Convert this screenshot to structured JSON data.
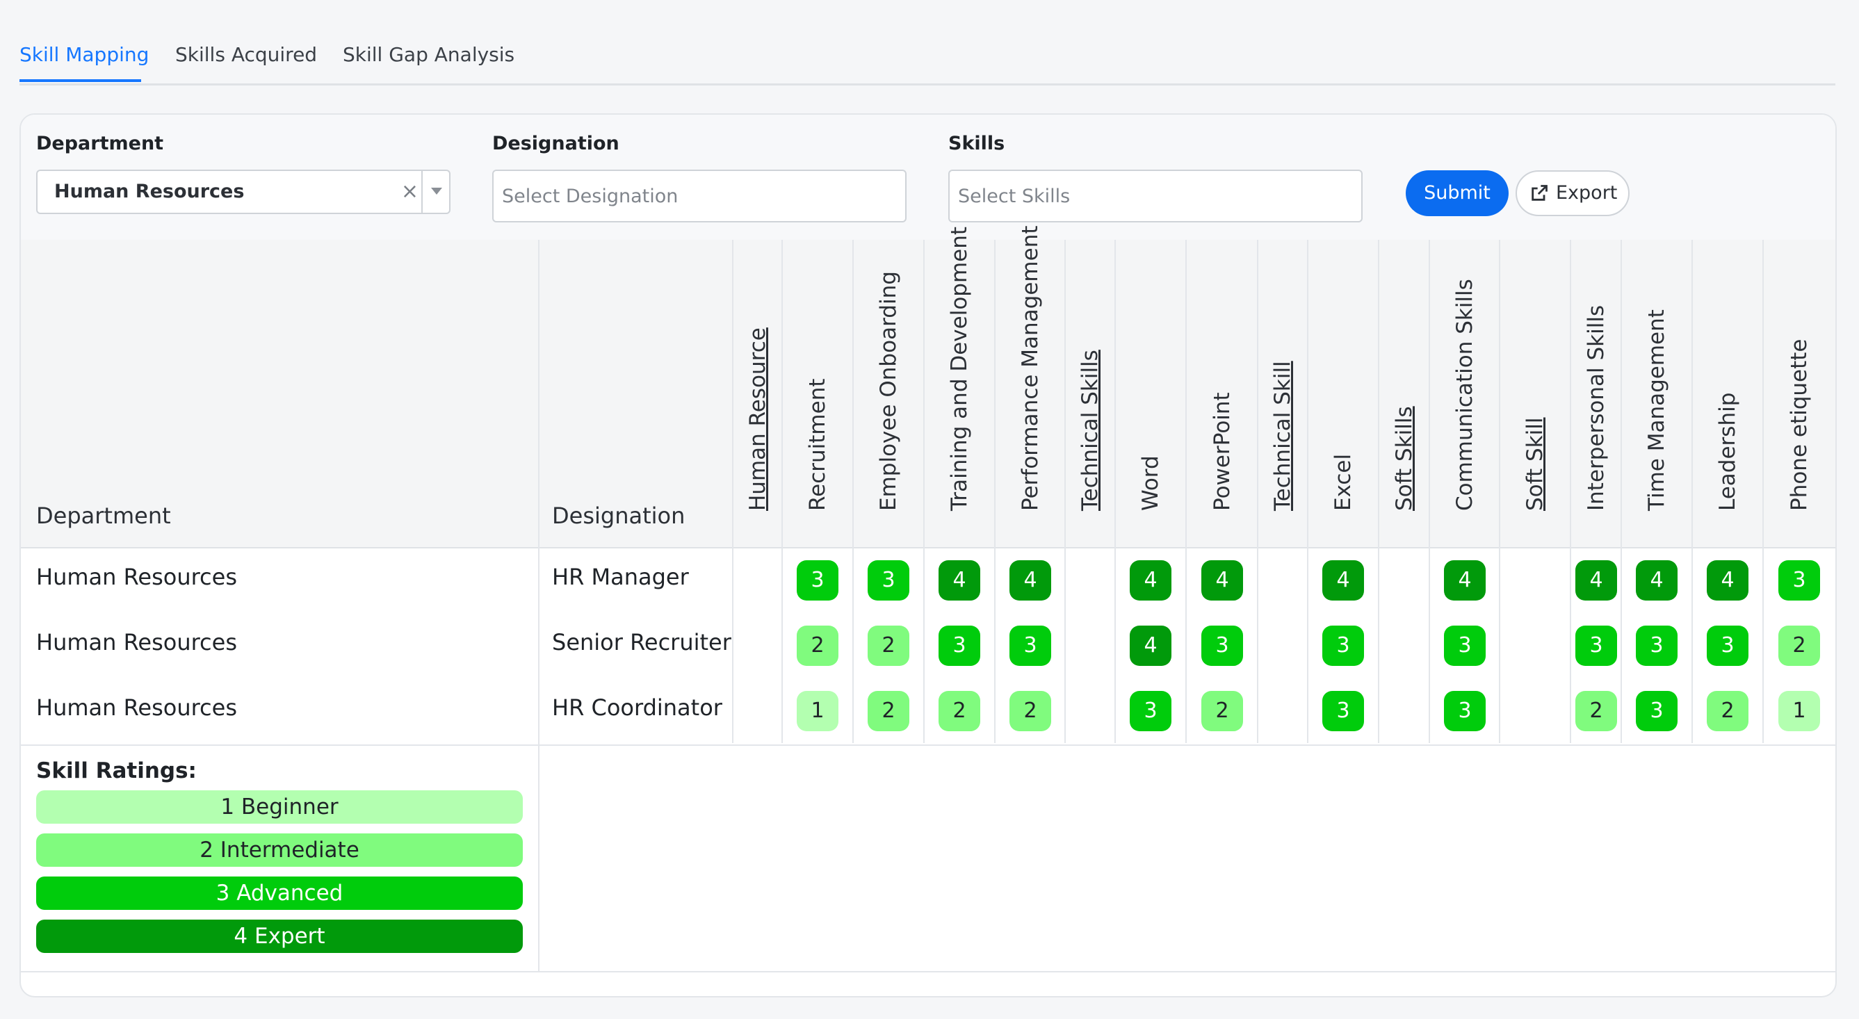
{
  "tabs": [
    {
      "label": "Skill Mapping",
      "active": true
    },
    {
      "label": "Skills Acquired",
      "active": false
    },
    {
      "label": "Skill Gap Analysis",
      "active": false
    }
  ],
  "filters": {
    "department": {
      "label": "Department",
      "value": "Human Resources"
    },
    "designation": {
      "label": "Designation",
      "placeholder": "Select Designation"
    },
    "skills": {
      "label": "Skills",
      "placeholder": "Select Skills"
    },
    "submit_label": "Submit",
    "export_label": "Export"
  },
  "table": {
    "department_header": "Department",
    "designation_header": "Designation",
    "skill_columns": [
      {
        "label": "Human Resource",
        "category": true
      },
      {
        "label": "Recruitment",
        "category": false
      },
      {
        "label": "Employee Onboarding",
        "category": false
      },
      {
        "label": "Training and Development",
        "category": false
      },
      {
        "label": "Performance Management",
        "category": false
      },
      {
        "label": "Technical Skills",
        "category": true
      },
      {
        "label": "Word",
        "category": false
      },
      {
        "label": "PowerPoint",
        "category": false
      },
      {
        "label": "Technical Skill",
        "category": true
      },
      {
        "label": "Excel",
        "category": false
      },
      {
        "label": "Soft Skills",
        "category": true
      },
      {
        "label": "Communication Skills",
        "category": false
      },
      {
        "label": "Soft Skill",
        "category": true
      },
      {
        "label": "Interpersonal Skills",
        "category": false
      },
      {
        "label": "Time Management",
        "category": false
      },
      {
        "label": "Leadership",
        "category": false
      },
      {
        "label": "Phone etiquette",
        "category": false
      }
    ],
    "rows": [
      {
        "department": "Human Resources",
        "designation": "HR Manager",
        "ratings": [
          null,
          3,
          3,
          4,
          4,
          null,
          4,
          4,
          null,
          4,
          null,
          4,
          null,
          4,
          4,
          4,
          3
        ]
      },
      {
        "department": "Human Resources",
        "designation": "Senior Recruiter",
        "ratings": [
          null,
          2,
          2,
          3,
          3,
          null,
          4,
          3,
          null,
          3,
          null,
          3,
          null,
          3,
          3,
          3,
          2
        ]
      },
      {
        "department": "Human Resources",
        "designation": "HR Coordinator",
        "ratings": [
          null,
          1,
          2,
          2,
          2,
          null,
          3,
          2,
          null,
          3,
          null,
          3,
          null,
          2,
          3,
          2,
          1
        ]
      }
    ]
  },
  "legend": {
    "title": "Skill Ratings:",
    "items": [
      {
        "label": "1 Beginner",
        "level": 1
      },
      {
        "label": "2 Intermediate",
        "level": 2
      },
      {
        "label": "3 Advanced",
        "level": 3
      },
      {
        "label": "4 Expert",
        "level": 4
      }
    ]
  },
  "colors": {
    "accent": "#1677ff",
    "submit": "#0b6cf0",
    "level1": "#b3ffb0",
    "level2": "#80fb7e",
    "level3": "#00cc0c",
    "level4": "#019a0b"
  },
  "icons": {
    "export": "external-link-icon",
    "clear": "close-icon",
    "dropdown": "chevron-down-icon"
  }
}
